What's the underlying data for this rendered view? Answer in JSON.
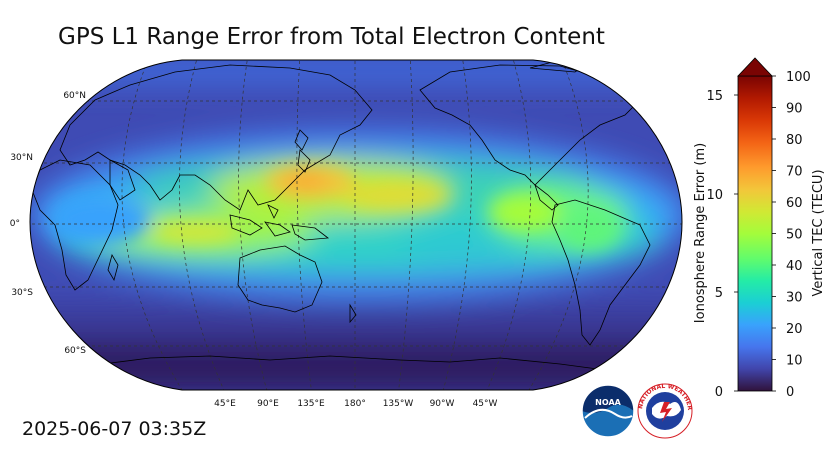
{
  "title": "GPS L1 Range Error from Total Electron Content",
  "timestamp": "2025-06-07 03:35Z",
  "map": {
    "projection": "Robinson",
    "central_longitude": 180,
    "lat_labels": [
      "60°N",
      "30°N",
      "0°",
      "30°S",
      "60°S"
    ],
    "lon_labels": [
      "45°E",
      "90°E",
      "135°E",
      "180°",
      "135°W",
      "90°W",
      "45°W"
    ]
  },
  "colorbar": {
    "left_axis_label": "Ionosphere Range Error (m)",
    "left_ticks": [
      "0",
      "5",
      "10",
      "15"
    ],
    "right_axis_label": "Vertical TEC (TECU)",
    "right_ticks": [
      "0",
      "10",
      "20",
      "30",
      "40",
      "50",
      "60",
      "70",
      "80",
      "90",
      "100"
    ],
    "extend": "max",
    "colors": [
      "#30123b",
      "#4145ab",
      "#4675ed",
      "#39a2fc",
      "#1bcfd4",
      "#24eca6",
      "#61fc6c",
      "#a4fc3b",
      "#d1e834",
      "#f3c63a",
      "#fe9b2d",
      "#f36315",
      "#d93806",
      "#b11901",
      "#7a0403"
    ]
  },
  "logos": {
    "noaa": {
      "icon": "noaa-logo",
      "text": "NOAA"
    },
    "nws": {
      "icon": "nws-logo",
      "text": "NATIONAL WEATHER SERVICE"
    }
  }
}
